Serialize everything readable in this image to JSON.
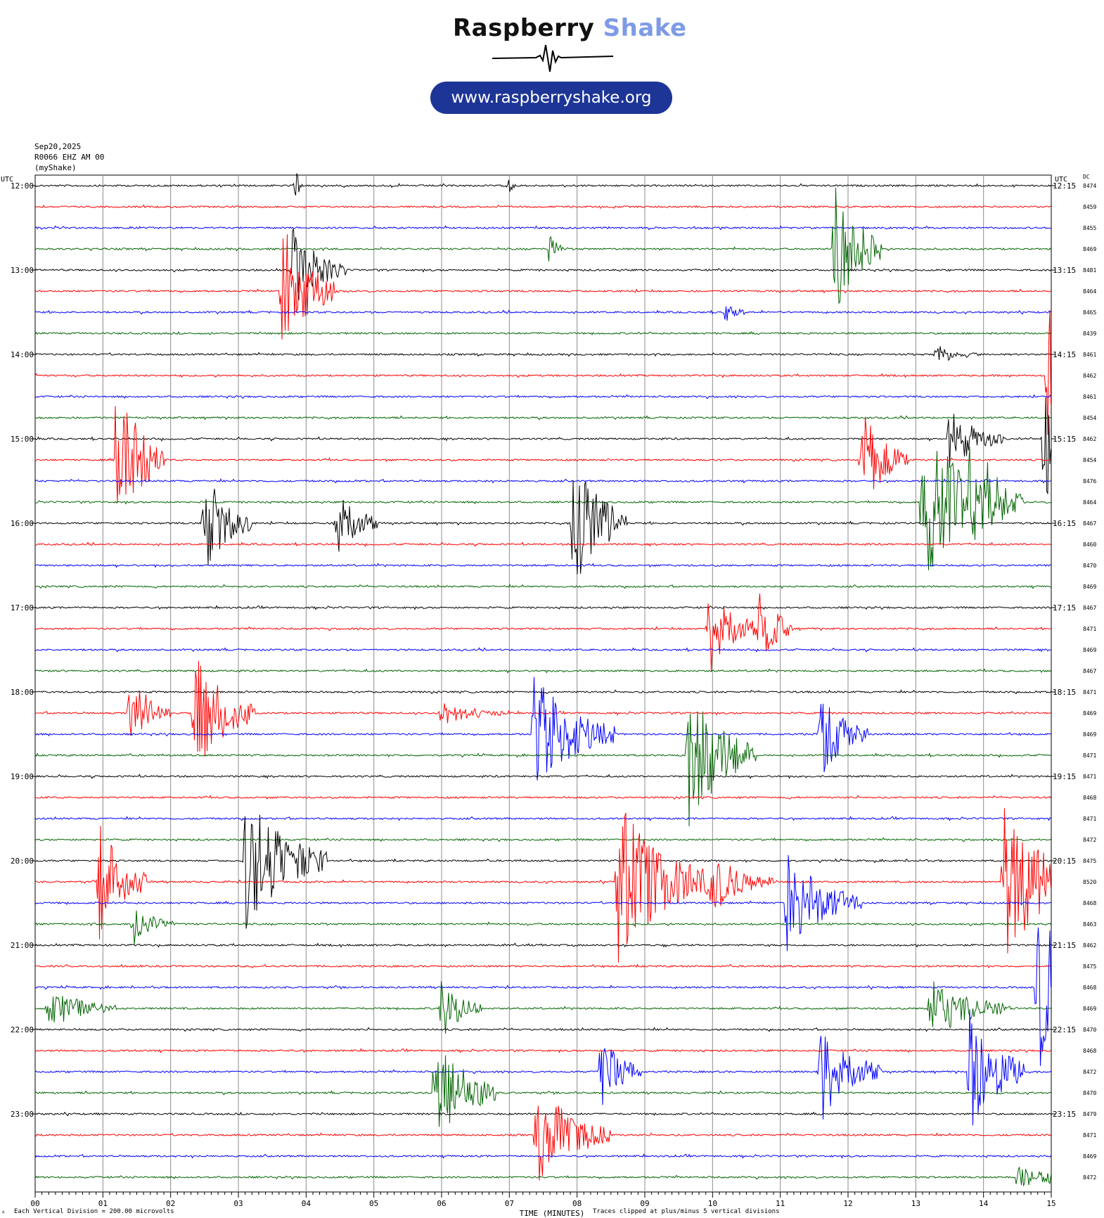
{
  "header": {
    "brand_part1": "Raspberry",
    "brand_part2": "Shake",
    "url": "www.raspberryshake.org",
    "date": "Sep20,2025",
    "station": "R0066 EHZ AM 00",
    "source": "(myShake)"
  },
  "colors": {
    "brand_accent": "#7d9be6",
    "pill": "#1d3596",
    "trace_cycle": [
      "#000000",
      "#ff0000",
      "#0000ff",
      "#006400"
    ]
  },
  "chart_data": {
    "type": "line",
    "title": "",
    "xlabel": "TIME (MINUTES)",
    "left_axis_label": "UTC",
    "right_axis_label": "UTC",
    "dc_label": "DC",
    "x_ticks": [
      "00",
      "01",
      "02",
      "03",
      "04",
      "05",
      "06",
      "07",
      "08",
      "09",
      "10",
      "11",
      "12",
      "13",
      "14",
      "15"
    ],
    "xlim": [
      0,
      15
    ],
    "grid": true,
    "left_hour_labels": [
      "12:00",
      "13:00",
      "14:00",
      "15:00",
      "16:00",
      "17:00",
      "18:00",
      "19:00",
      "20:00",
      "21:00",
      "22:00",
      "23:00"
    ],
    "right_hour_labels": [
      "12:15",
      "13:15",
      "14:15",
      "15:15",
      "16:15",
      "17:15",
      "18:15",
      "19:15",
      "20:15",
      "21:15",
      "22:15",
      "23:15"
    ],
    "dc_values": [
      8474,
      8459,
      8455,
      8469,
      8481,
      8464,
      8465,
      8439,
      8461,
      8462,
      8461,
      8454,
      8462,
      8454,
      8476,
      8464,
      8467,
      8460,
      8470,
      8469,
      8467,
      8471,
      8469,
      8467,
      8471,
      8469,
      8469,
      8471,
      8471,
      8468,
      8471,
      8472,
      8475,
      8520,
      8468,
      8463,
      8462,
      8475,
      8468,
      8469,
      8470,
      8468,
      8472,
      8470,
      8479,
      8471,
      8469,
      8472
    ],
    "events": [
      {
        "row": 0,
        "minute": 3.85,
        "amp": 0.8,
        "dur": 0.05
      },
      {
        "row": 0,
        "minute": 7.0,
        "amp": 0.4,
        "dur": 0.05
      },
      {
        "row": 3,
        "minute": 11.8,
        "amp": 3.5,
        "dur": 0.35
      },
      {
        "row": 3,
        "minute": 7.6,
        "amp": 1.0,
        "dur": 0.1
      },
      {
        "row": 4,
        "minute": 3.8,
        "amp": 2.0,
        "dur": 0.4
      },
      {
        "row": 5,
        "minute": 3.65,
        "amp": 3.2,
        "dur": 0.4
      },
      {
        "row": 6,
        "minute": 10.2,
        "amp": 0.5,
        "dur": 0.15
      },
      {
        "row": 8,
        "minute": 13.3,
        "amp": 0.5,
        "dur": 0.3
      },
      {
        "row": 9,
        "minute": 14.95,
        "amp": 4.0,
        "dur": 0.25
      },
      {
        "row": 12,
        "minute": 14.9,
        "amp": 4.0,
        "dur": 0.35
      },
      {
        "row": 12,
        "minute": 13.5,
        "amp": 1.5,
        "dur": 0.4
      },
      {
        "row": 13,
        "minute": 1.2,
        "amp": 4.0,
        "dur": 0.35
      },
      {
        "row": 13,
        "minute": 12.2,
        "amp": 2.5,
        "dur": 0.35
      },
      {
        "row": 15,
        "minute": 13.1,
        "amp": 4.0,
        "dur": 0.6
      },
      {
        "row": 15,
        "minute": 13.8,
        "amp": 2.5,
        "dur": 0.4
      },
      {
        "row": 16,
        "minute": 2.5,
        "amp": 2.5,
        "dur": 0.35
      },
      {
        "row": 16,
        "minute": 4.45,
        "amp": 2.0,
        "dur": 0.3
      },
      {
        "row": 16,
        "minute": 7.95,
        "amp": 3.5,
        "dur": 0.4
      },
      {
        "row": 21,
        "minute": 9.95,
        "amp": 2.5,
        "dur": 0.35
      },
      {
        "row": 21,
        "minute": 10.7,
        "amp": 2.0,
        "dur": 0.25
      },
      {
        "row": 25,
        "minute": 1.4,
        "amp": 2.0,
        "dur": 0.3
      },
      {
        "row": 25,
        "minute": 2.35,
        "amp": 3.0,
        "dur": 0.45
      },
      {
        "row": 25,
        "minute": 6.0,
        "amp": 0.6,
        "dur": 0.5
      },
      {
        "row": 26,
        "minute": 7.35,
        "amp": 3.0,
        "dur": 0.6
      },
      {
        "row": 26,
        "minute": 11.6,
        "amp": 2.2,
        "dur": 0.35
      },
      {
        "row": 27,
        "minute": 9.65,
        "amp": 3.5,
        "dur": 0.5
      },
      {
        "row": 32,
        "minute": 3.1,
        "amp": 3.5,
        "dur": 0.6
      },
      {
        "row": 33,
        "minute": 0.95,
        "amp": 3.0,
        "dur": 0.35
      },
      {
        "row": 33,
        "minute": 8.6,
        "amp": 4.0,
        "dur": 0.7
      },
      {
        "row": 33,
        "minute": 10.0,
        "amp": 1.5,
        "dur": 0.45
      },
      {
        "row": 33,
        "minute": 14.3,
        "amp": 4.0,
        "dur": 0.6
      },
      {
        "row": 34,
        "minute": 11.1,
        "amp": 2.5,
        "dur": 0.55
      },
      {
        "row": 35,
        "minute": 1.45,
        "amp": 1.0,
        "dur": 0.3
      },
      {
        "row": 38,
        "minute": 14.8,
        "amp": 4.0,
        "dur": 0.6
      },
      {
        "row": 39,
        "minute": 0.2,
        "amp": 1.0,
        "dur": 0.5
      },
      {
        "row": 39,
        "minute": 6.0,
        "amp": 1.5,
        "dur": 0.3
      },
      {
        "row": 39,
        "minute": 13.2,
        "amp": 1.5,
        "dur": 0.6
      },
      {
        "row": 42,
        "minute": 8.35,
        "amp": 2.0,
        "dur": 0.3
      },
      {
        "row": 42,
        "minute": 11.6,
        "amp": 2.5,
        "dur": 0.45
      },
      {
        "row": 42,
        "minute": 13.8,
        "amp": 3.5,
        "dur": 0.4
      },
      {
        "row": 43,
        "minute": 5.9,
        "amp": 3.0,
        "dur": 0.45
      },
      {
        "row": 45,
        "minute": 7.4,
        "amp": 2.5,
        "dur": 0.55
      },
      {
        "row": 47,
        "minute": 14.5,
        "amp": 0.5,
        "dur": 0.8
      }
    ]
  },
  "footer": {
    "division_note": "Each Vertical Division =  200.00 microvolts",
    "clip_note": "Traces clipped at plus/minus 5 vertical divisions"
  }
}
